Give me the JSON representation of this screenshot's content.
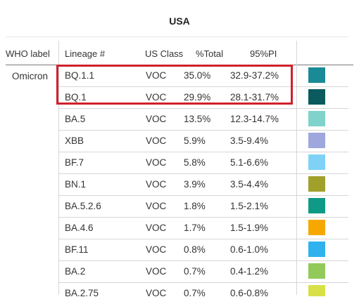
{
  "title": "USA",
  "columns": {
    "who_label": "WHO label",
    "lineage": "Lineage #",
    "us_class": "US Class",
    "total": "%Total",
    "pi": "95%PI"
  },
  "group": "Omicron",
  "rows": [
    {
      "lineage": "BQ.1.1",
      "class": "VOC",
      "total": "35.0%",
      "pi": "32.9-37.2%",
      "color": "#1a8a96"
    },
    {
      "lineage": "BQ.1",
      "class": "VOC",
      "total": "29.9%",
      "pi": "28.1-31.7%",
      "color": "#0b5a5e"
    },
    {
      "lineage": "BA.5",
      "class": "VOC",
      "total": "13.5%",
      "pi": "12.3-14.7%",
      "color": "#7fd3cb"
    },
    {
      "lineage": "XBB",
      "class": "VOC",
      "total": "5.9%",
      "pi": "3.5-9.4%",
      "color": "#9fa8dc"
    },
    {
      "lineage": "BF.7",
      "class": "VOC",
      "total": "5.8%",
      "pi": "5.1-6.6%",
      "color": "#7fd2f5"
    },
    {
      "lineage": "BN.1",
      "class": "VOC",
      "total": "3.9%",
      "pi": "3.5-4.4%",
      "color": "#a0a02a"
    },
    {
      "lineage": "BA.5.2.6",
      "class": "VOC",
      "total": "1.8%",
      "pi": "1.5-2.1%",
      "color": "#0f9a86"
    },
    {
      "lineage": "BA.4.6",
      "class": "VOC",
      "total": "1.7%",
      "pi": "1.5-1.9%",
      "color": "#f7a800"
    },
    {
      "lineage": "BF.11",
      "class": "VOC",
      "total": "0.8%",
      "pi": "0.6-1.0%",
      "color": "#2fb2ee"
    },
    {
      "lineage": "BA.2",
      "class": "VOC",
      "total": "0.7%",
      "pi": "0.4-1.2%",
      "color": "#92c95a"
    },
    {
      "lineage": "BA.2.75",
      "class": "VOC",
      "total": "0.7%",
      "pi": "0.6-0.8%",
      "color": "#d8e048"
    }
  ]
}
